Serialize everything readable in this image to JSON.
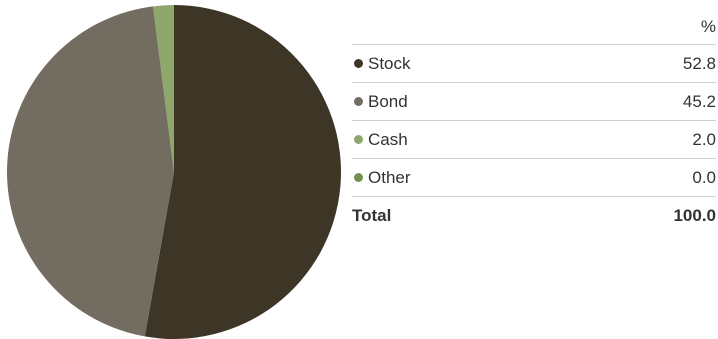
{
  "chart_data": {
    "type": "pie",
    "unit_label": "%",
    "series": [
      {
        "name": "Stock",
        "value": 52.8,
        "display": "52.8",
        "color": "#3d3526"
      },
      {
        "name": "Bond",
        "value": 45.2,
        "display": "45.2",
        "color": "#736c61"
      },
      {
        "name": "Cash",
        "value": 2.0,
        "display": "2.0",
        "color": "#8ea86c"
      },
      {
        "name": "Other",
        "value": 0.0,
        "display": "0.0",
        "color": "#72914f"
      }
    ],
    "total": {
      "label": "Total",
      "value": "100.0"
    },
    "legend_placement": "right"
  }
}
